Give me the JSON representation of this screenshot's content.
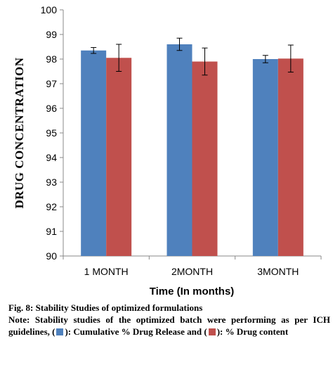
{
  "chart_data": {
    "type": "bar",
    "categories": [
      "1 MONTH",
      "2MONTH",
      "3MONTH"
    ],
    "series": [
      {
        "values": [
          98.35,
          98.6,
          98.0
        ],
        "errors": [
          0.12,
          0.25,
          0.15
        ],
        "color": "#4F81BD"
      },
      {
        "values": [
          98.05,
          97.9,
          98.02
        ],
        "errors": [
          0.55,
          0.55,
          0.55
        ],
        "color": "#C0504D"
      }
    ],
    "xlabel": "Time (In months)",
    "ylabel": "DRUG CONCENTRATION",
    "ylim": [
      90,
      100
    ],
    "yticks": [
      "90",
      "91",
      "92",
      "93",
      "94",
      "95",
      "96",
      "97",
      "98",
      "99",
      "100"
    ],
    "grid": false,
    "error_bars": true
  },
  "caption": {
    "title": "Fig. 8: Stability Studies of optimized formulations",
    "note_prefix": "Note: Stability studies of the optimized batch were performing as per ICH guidelines, (",
    "note_mid": "): Cumulative % Drug Release and (",
    "note_suffix": "): % Drug content"
  }
}
